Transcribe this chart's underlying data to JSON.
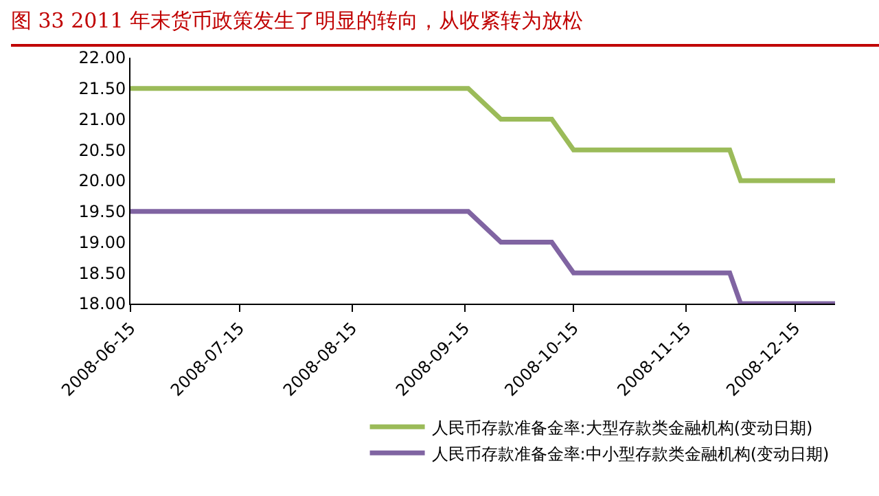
{
  "chart_data": {
    "type": "line",
    "title": "图 33   2011 年末货币政策发生了明显的转向，从收紧转为放松",
    "x": [
      "2008-06-15",
      "2008-09-16",
      "2008-09-25",
      "2008-10-09",
      "2008-10-15",
      "2008-11-27",
      "2008-11-30",
      "2008-12-26"
    ],
    "series": [
      {
        "name": "人民币存款准备金率:大型存款类金融机构(变动日期)",
        "color": "#9bbb59",
        "values": [
          21.5,
          21.5,
          21.0,
          21.0,
          20.5,
          20.5,
          20.0,
          20.0
        ]
      },
      {
        "name": "人民币存款准备金率:中小型存款类金融机构(变动日期)",
        "color": "#8064a2",
        "values": [
          19.5,
          19.5,
          19.0,
          19.0,
          18.5,
          18.5,
          18.0,
          18.0
        ]
      }
    ],
    "xlim": [
      "2008-06-15",
      "2008-12-26"
    ],
    "xticks": [
      "2008-06-15",
      "2008-07-15",
      "2008-08-15",
      "2008-09-15",
      "2008-10-15",
      "2008-11-15",
      "2008-12-15"
    ],
    "ylim": [
      18,
      22
    ],
    "yticks": [
      {
        "value": 18,
        "label": "18.00"
      },
      {
        "value": 18.5,
        "label": "18.50"
      },
      {
        "value": 19,
        "label": "19.00"
      },
      {
        "value": 19.5,
        "label": "19.50"
      },
      {
        "value": 20,
        "label": "20.00"
      },
      {
        "value": 20.5,
        "label": "20.50"
      },
      {
        "value": 21,
        "label": "21.00"
      },
      {
        "value": 21.5,
        "label": "21.50"
      },
      {
        "value": 22,
        "label": "22.00"
      }
    ],
    "grid": false,
    "legend": "bottom",
    "marker": "none",
    "line_style": "solid"
  }
}
